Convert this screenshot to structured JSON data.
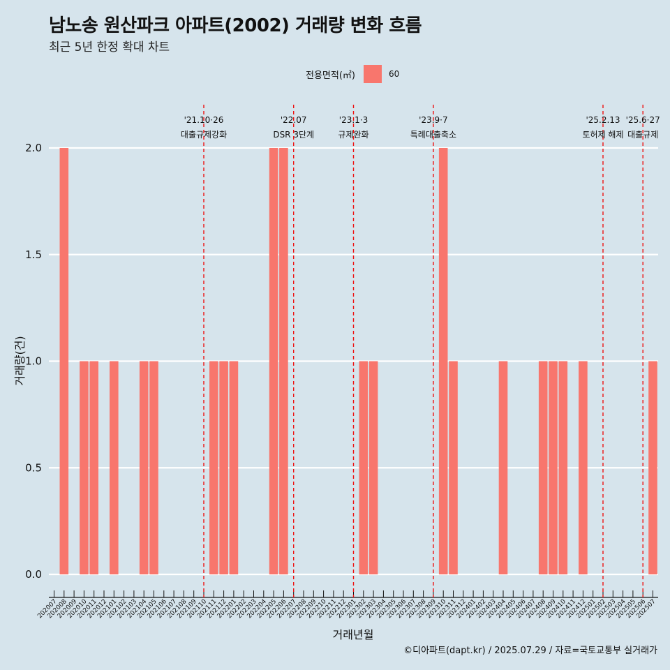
{
  "title": "남노송 원산파크 아파트(2002) 거래량 변화 흐름",
  "subtitle": "최근 5년 한정 확대 차트",
  "caption": "©디아파트(dapt.kr) / 2025.07.29 / 자료=국토교통부 실거래가",
  "legend": {
    "title": "전용면적(㎡)",
    "label": "60"
  },
  "colors": {
    "bar": "#f8766d",
    "background": "#d6e4ec",
    "grid": "#ffffff",
    "vline": "#ee1111"
  },
  "chart_data": {
    "type": "bar",
    "xlabel": "거래년월",
    "ylabel": "거래량(건)",
    "ylim": [
      0,
      2
    ],
    "yticks": [
      "0.0",
      "0.5",
      "1.0",
      "1.5",
      "2.0"
    ],
    "grid": true,
    "legend_position": "top",
    "categories": [
      "202007",
      "202008",
      "202009",
      "202010",
      "202011",
      "202012",
      "202101",
      "202102",
      "202103",
      "202104",
      "202105",
      "202106",
      "202107",
      "202108",
      "202109",
      "202110",
      "202111",
      "202112",
      "202201",
      "202202",
      "202203",
      "202204",
      "202205",
      "202206",
      "202207",
      "202208",
      "202209",
      "202210",
      "202211",
      "202212",
      "202301",
      "202302",
      "202303",
      "202304",
      "202305",
      "202306",
      "202307",
      "202308",
      "202309",
      "202310",
      "202311",
      "202312",
      "202401",
      "202402",
      "202403",
      "202404",
      "202405",
      "202406",
      "202407",
      "202408",
      "202409",
      "202410",
      "202411",
      "202412",
      "202501",
      "202502",
      "202503",
      "202504",
      "202505",
      "202506",
      "202507"
    ],
    "series": [
      {
        "name": "60",
        "values": [
          0,
          2,
          0,
          1,
          1,
          0,
          1,
          0,
          0,
          1,
          1,
          0,
          0,
          0,
          0,
          0,
          1,
          1,
          1,
          0,
          0,
          0,
          2,
          2,
          0,
          0,
          0,
          0,
          0,
          0,
          0,
          1,
          1,
          0,
          0,
          0,
          0,
          0,
          0,
          2,
          1,
          0,
          0,
          0,
          0,
          1,
          0,
          0,
          0,
          1,
          1,
          1,
          0,
          1,
          0,
          0,
          0,
          0,
          0,
          0,
          1
        ]
      }
    ],
    "annotations": [
      {
        "line1": "'21.10·26",
        "line2": "대출규제강화",
        "x": "202110"
      },
      {
        "line1": "'22.07",
        "line2": "DSR 3단계",
        "x": "202207"
      },
      {
        "line1": "'23.1·3",
        "line2": "규제완화",
        "x": "202301"
      },
      {
        "line1": "'23.9·7",
        "line2": "특례대출축소",
        "x": "202309"
      },
      {
        "line1": "'25.2.13",
        "line2": "토허제 해제",
        "x": "202502"
      },
      {
        "line1": "'25.6·27",
        "line2": "대출규제",
        "x": "202506"
      }
    ]
  }
}
